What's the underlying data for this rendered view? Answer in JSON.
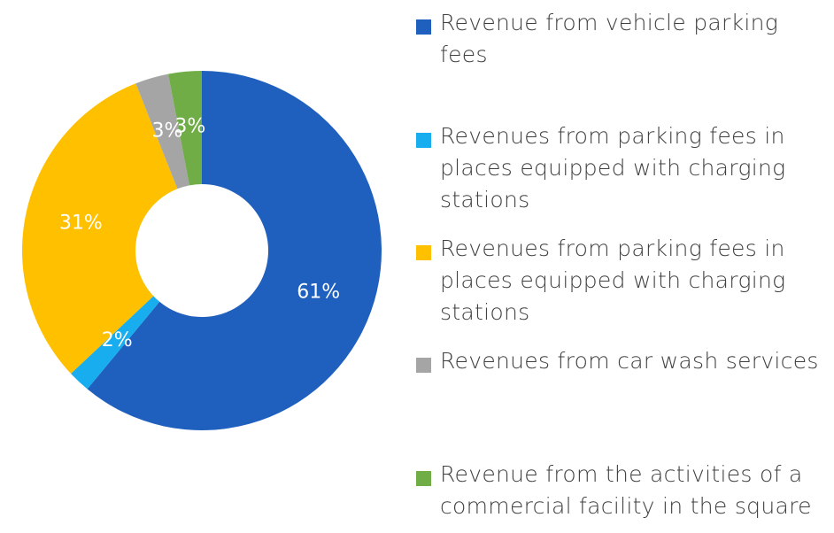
{
  "chart_data": {
    "type": "donut",
    "categories": [
      "Revenue from vehicle parking fees",
      "Revenues from parking fees in places equipped with charging stations",
      "Revenues from parking fees in places equipped with charging stations",
      "Revenues from car wash services",
      "Revenue from the activities of a commercial facility in the square"
    ],
    "values": [
      61,
      2,
      31,
      3,
      3
    ],
    "value_labels": [
      "61%",
      "2%",
      "31%",
      "3%",
      "3%"
    ],
    "colors": [
      "#1f5fbd",
      "#17adee",
      "#ffc000",
      "#a5a5a5",
      "#70ad47"
    ],
    "legend": "right"
  }
}
